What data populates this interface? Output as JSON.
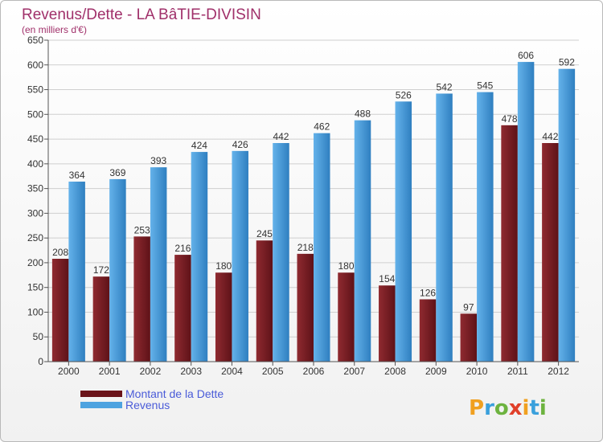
{
  "chart_data": {
    "type": "bar",
    "title": "Revenus/Dette - LA BâTIE-DIVISIN",
    "subtitle": "(en milliers d'€)",
    "categories": [
      "2000",
      "2001",
      "2002",
      "2003",
      "2004",
      "2005",
      "2006",
      "2007",
      "2008",
      "2009",
      "2010",
      "2011",
      "2012"
    ],
    "series": [
      {
        "name": "Montant de la Dette",
        "color": "#7a1e24",
        "values": [
          208,
          172,
          253,
          216,
          180,
          245,
          218,
          180,
          154,
          126,
          97,
          478,
          442
        ]
      },
      {
        "name": "Revenus",
        "color": "#4ea3e0",
        "values": [
          364,
          369,
          393,
          424,
          426,
          442,
          462,
          488,
          526,
          542,
          545,
          606,
          592
        ]
      }
    ],
    "ylim": [
      0,
      650
    ],
    "yticks": [
      0,
      50,
      100,
      150,
      200,
      250,
      300,
      350,
      400,
      450,
      500,
      550,
      600,
      650
    ],
    "grid": true,
    "legend_position": "bottom-left"
  },
  "brand": "Proxiti"
}
